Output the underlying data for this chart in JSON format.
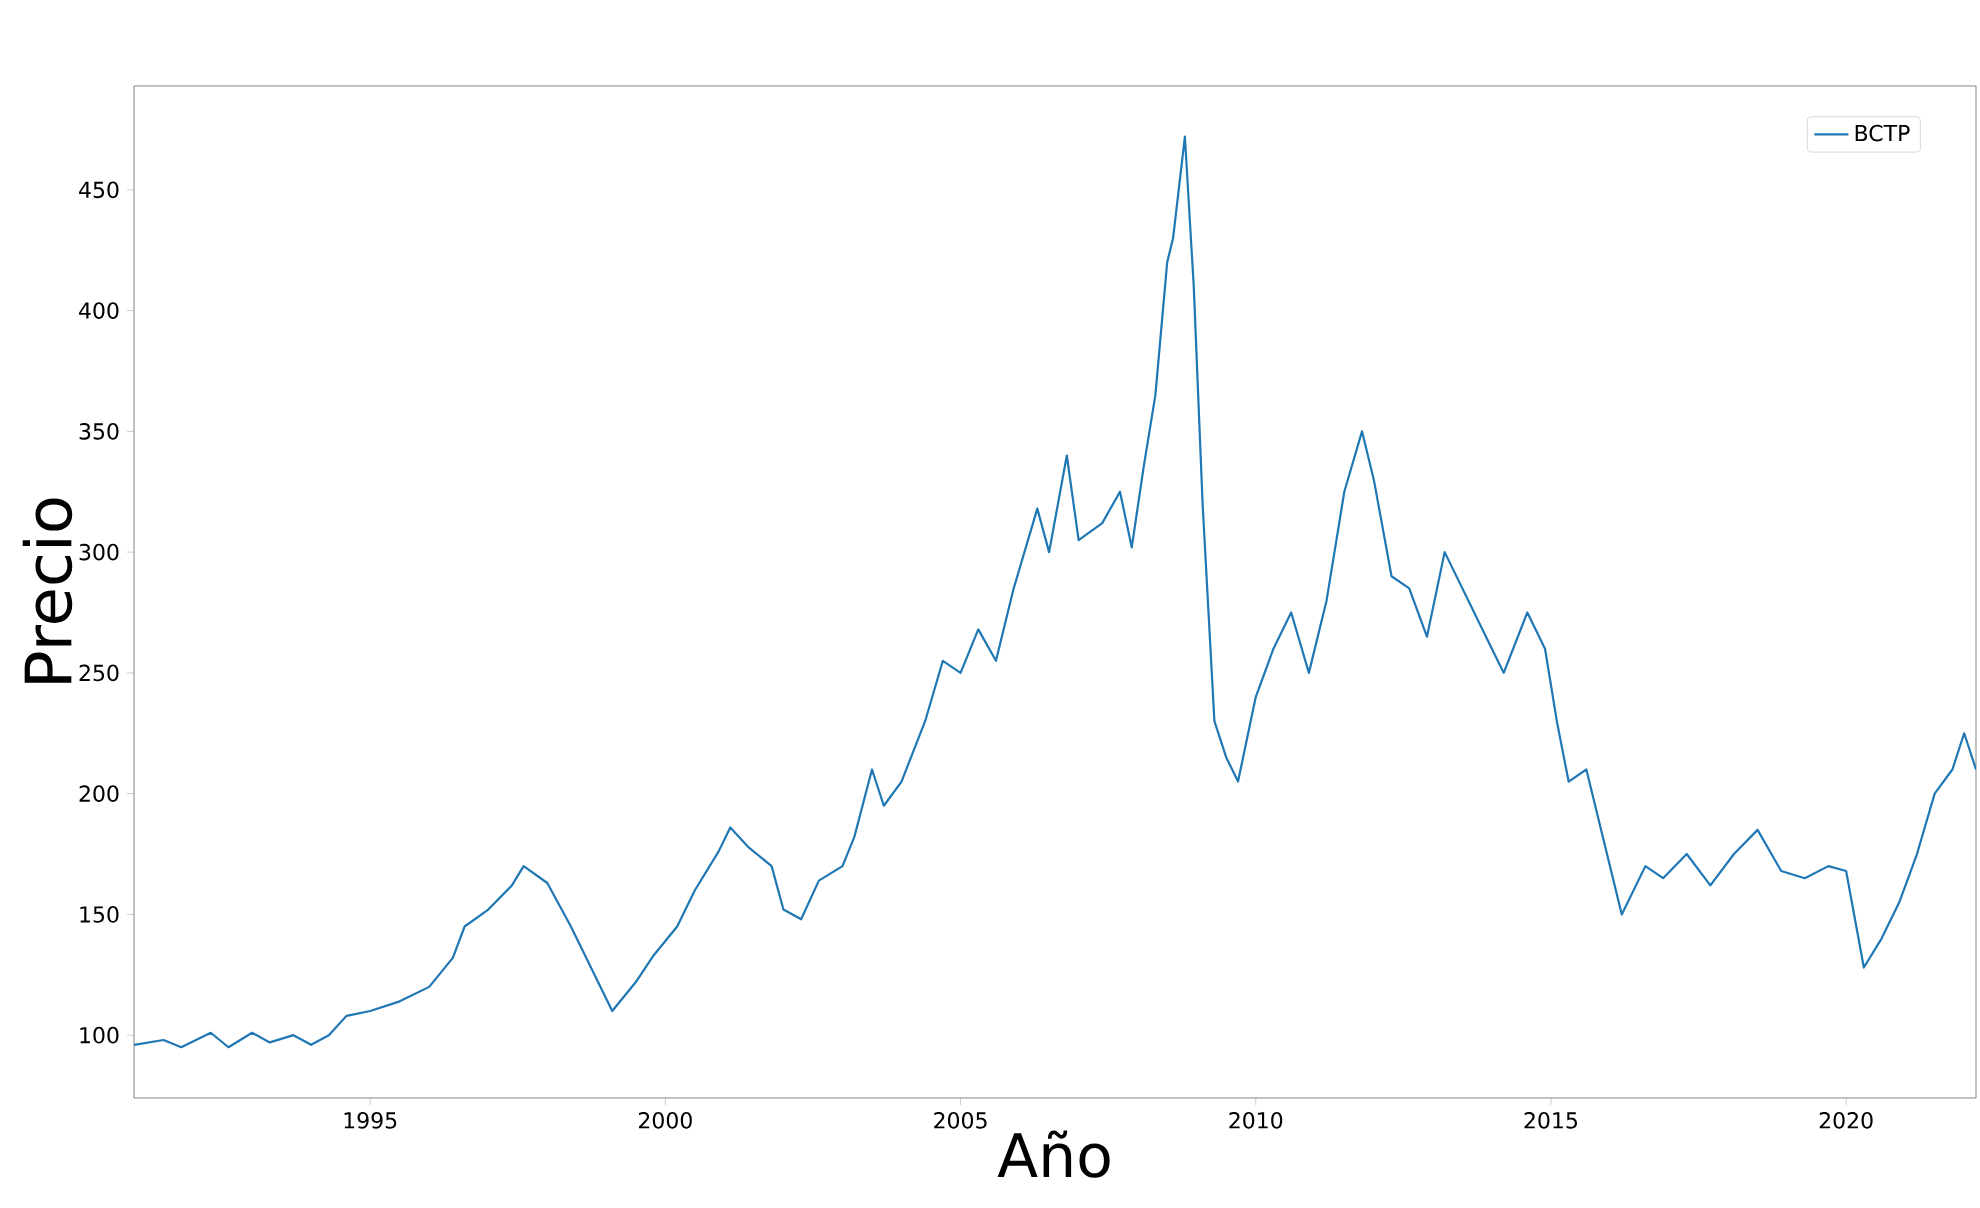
{
  "chart_data": {
    "type": "line",
    "xlabel": "Año",
    "ylabel": "Precio",
    "legend": "top right",
    "grid": false,
    "xlim": [
      1991.0,
      2022.2
    ],
    "xticks": [
      1995,
      2000,
      2005,
      2010,
      2015,
      2020
    ],
    "ylim": [
      74,
      493
    ],
    "yticks": [
      100,
      150,
      200,
      250,
      300,
      350,
      400,
      450
    ],
    "series": [
      {
        "name": "BCTP",
        "color": "#1f77b4",
        "x": [
          1991.0,
          1991.5,
          1991.8,
          1992.3,
          1992.6,
          1993.0,
          1993.3,
          1993.7,
          1994.0,
          1994.3,
          1994.6,
          1995.0,
          1995.5,
          1996.0,
          1996.4,
          1996.6,
          1997.0,
          1997.4,
          1997.6,
          1998.0,
          1998.4,
          1998.8,
          1999.1,
          1999.5,
          1999.8,
          2000.2,
          2000.5,
          2000.9,
          2001.1,
          2001.4,
          2001.8,
          2002.0,
          2002.3,
          2002.6,
          2003.0,
          2003.2,
          2003.5,
          2003.7,
          2004.0,
          2004.4,
          2004.7,
          2005.0,
          2005.3,
          2005.6,
          2005.9,
          2006.3,
          2006.5,
          2006.8,
          2007.0,
          2007.4,
          2007.7,
          2007.9,
          2008.1,
          2008.3,
          2008.5,
          2008.6,
          2008.8,
          2008.95,
          2009.1,
          2009.3,
          2009.5,
          2009.7,
          2010.0,
          2010.3,
          2010.6,
          2010.9,
          2011.2,
          2011.5,
          2011.8,
          2012.0,
          2012.3,
          2012.6,
          2012.9,
          2013.2,
          2013.5,
          2013.9,
          2014.2,
          2014.6,
          2014.9,
          2015.1,
          2015.3,
          2015.6,
          2015.9,
          2016.2,
          2016.6,
          2016.9,
          2017.3,
          2017.7,
          2018.1,
          2018.5,
          2018.9,
          2019.3,
          2019.7,
          2020.0,
          2020.3,
          2020.6,
          2020.9,
          2021.2,
          2021.5,
          2021.8,
          2022.0,
          2022.2
        ],
        "values": [
          96,
          98,
          95,
          101,
          95,
          101,
          97,
          100,
          96,
          100,
          108,
          110,
          114,
          120,
          132,
          145,
          152,
          162,
          170,
          163,
          145,
          125,
          110,
          122,
          133,
          145,
          160,
          176,
          186,
          178,
          170,
          152,
          148,
          164,
          170,
          182,
          210,
          195,
          205,
          230,
          255,
          250,
          268,
          255,
          285,
          318,
          300,
          340,
          305,
          312,
          325,
          302,
          335,
          365,
          420,
          430,
          472,
          410,
          320,
          230,
          215,
          205,
          240,
          260,
          275,
          250,
          280,
          325,
          350,
          330,
          290,
          285,
          265,
          300,
          285,
          265,
          250,
          275,
          260,
          230,
          205,
          210,
          180,
          150,
          170,
          165,
          175,
          162,
          175,
          185,
          168,
          165,
          170,
          168,
          128,
          140,
          155,
          175,
          200,
          210,
          225,
          210
        ]
      }
    ]
  }
}
